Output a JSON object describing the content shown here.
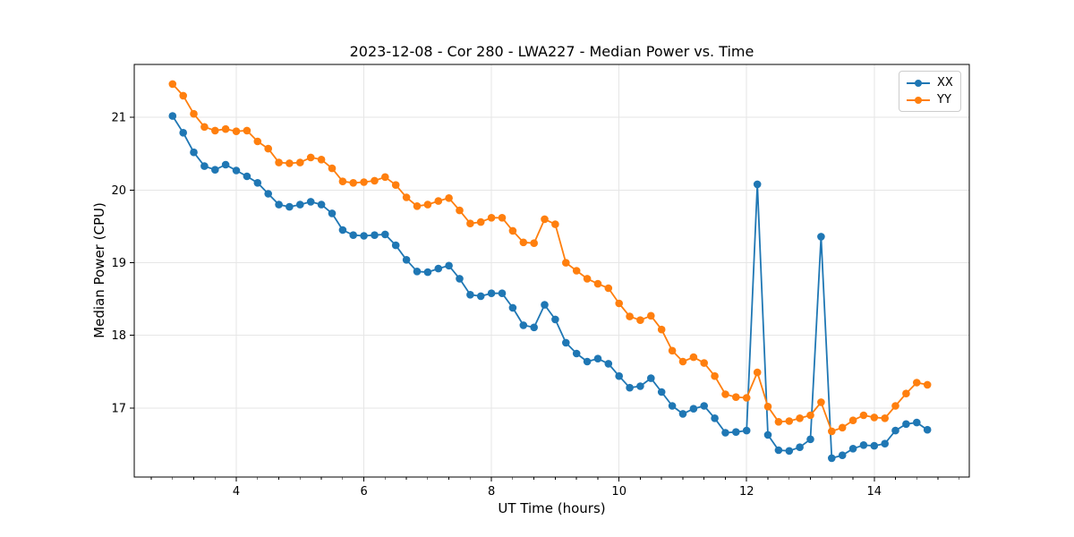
{
  "chart_data": {
    "type": "line",
    "title": "2023-12-08 - Cor 280 - LWA227 - Median Power vs. Time",
    "xlabel": "UT Time (hours)",
    "ylabel": "Median Power (CPU)",
    "xlim": [
      2.4,
      15.49
    ],
    "ylim": [
      16.05,
      21.73
    ],
    "xticks": [
      4,
      6,
      8,
      10,
      12,
      14
    ],
    "yticks": [
      17,
      18,
      19,
      20,
      21
    ],
    "x_minor_tick_step": 0.3333,
    "grid": true,
    "legend_position": "upper right",
    "x": [
      3.0,
      3.167,
      3.333,
      3.5,
      3.667,
      3.833,
      4.0,
      4.167,
      4.333,
      4.5,
      4.667,
      4.833,
      5.0,
      5.167,
      5.333,
      5.5,
      5.667,
      5.833,
      6.0,
      6.167,
      6.333,
      6.5,
      6.667,
      6.833,
      7.0,
      7.167,
      7.333,
      7.5,
      7.667,
      7.833,
      8.0,
      8.167,
      8.333,
      8.5,
      8.667,
      8.833,
      9.0,
      9.167,
      9.333,
      9.5,
      9.667,
      9.833,
      10.0,
      10.167,
      10.333,
      10.5,
      10.667,
      10.833,
      11.0,
      11.167,
      11.333,
      11.5,
      11.667,
      11.833,
      12.0,
      12.167,
      12.333,
      12.5,
      12.667,
      12.833,
      13.0,
      13.167,
      13.333,
      13.5,
      13.667,
      13.833,
      14.0,
      14.167,
      14.333,
      14.5,
      14.667,
      14.833
    ],
    "series": [
      {
        "name": "XX",
        "color": "#1f77b4",
        "marker": "circle",
        "values": [
          21.02,
          20.79,
          20.52,
          20.33,
          20.28,
          20.35,
          20.27,
          20.19,
          20.1,
          19.95,
          19.8,
          19.77,
          19.8,
          19.84,
          19.8,
          19.68,
          19.45,
          19.38,
          19.37,
          19.38,
          19.39,
          19.24,
          19.04,
          18.88,
          18.87,
          18.92,
          18.96,
          18.78,
          18.56,
          18.54,
          18.58,
          18.58,
          18.38,
          18.14,
          18.11,
          18.42,
          18.22,
          17.9,
          17.75,
          17.64,
          17.68,
          17.61,
          17.44,
          17.28,
          17.3,
          17.41,
          17.22,
          17.03,
          16.92,
          16.99,
          17.03,
          16.86,
          16.66,
          16.67,
          16.69,
          20.08,
          16.63,
          16.42,
          16.41,
          16.46,
          16.57,
          19.36,
          16.31,
          16.35,
          16.44,
          16.49,
          16.48,
          16.51,
          16.69,
          16.78,
          16.8,
          16.7
        ]
      },
      {
        "name": "YY",
        "color": "#ff7f0e",
        "marker": "circle",
        "values": [
          21.46,
          21.3,
          21.05,
          20.87,
          20.82,
          20.84,
          20.81,
          20.82,
          20.67,
          20.57,
          20.38,
          20.37,
          20.38,
          20.45,
          20.42,
          20.3,
          20.12,
          20.1,
          20.11,
          20.13,
          20.18,
          20.07,
          19.9,
          19.78,
          19.8,
          19.85,
          19.89,
          19.72,
          19.54,
          19.56,
          19.62,
          19.62,
          19.44,
          19.28,
          19.27,
          19.6,
          19.53,
          19.0,
          18.89,
          18.78,
          18.71,
          18.65,
          18.44,
          18.26,
          18.21,
          18.27,
          18.08,
          17.79,
          17.64,
          17.7,
          17.62,
          17.44,
          17.19,
          17.15,
          17.14,
          17.49,
          17.02,
          16.81,
          16.82,
          16.86,
          16.9,
          17.08,
          16.68,
          16.73,
          16.83,
          16.9,
          16.87,
          16.86,
          17.03,
          17.2,
          17.35,
          17.32
        ]
      }
    ],
    "style": {
      "grid_color": "#e6e6e6",
      "spine_color": "#000000",
      "tick_label_color": "#000000"
    }
  }
}
